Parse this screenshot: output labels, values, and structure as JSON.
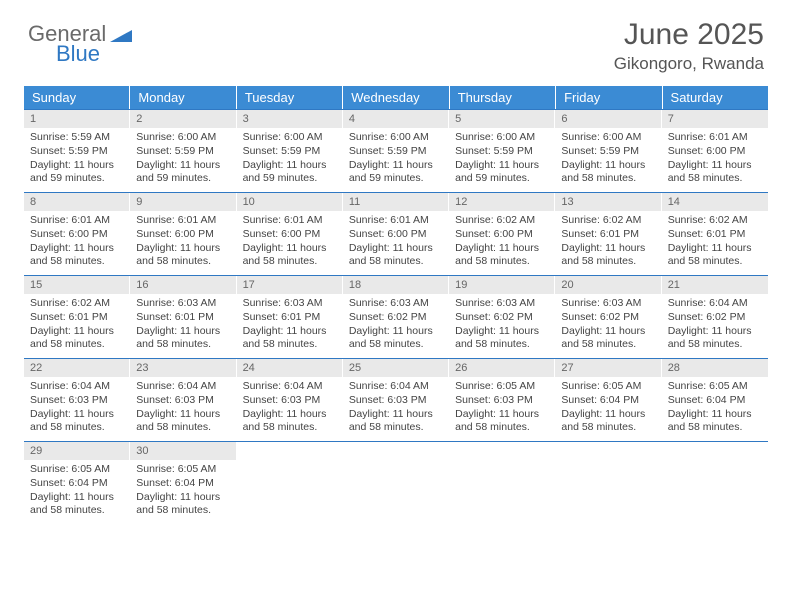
{
  "brand": {
    "part1": "General",
    "part2": "Blue"
  },
  "title": "June 2025",
  "location": "Gikongoro, Rwanda",
  "colors": {
    "header_bg": "#3b8bd4",
    "border": "#2f78c3",
    "daynum_bg": "#e9e9e9",
    "text": "#444444",
    "brand_gray": "#6a6a6a",
    "brand_blue": "#2f78c3"
  },
  "weekdays": [
    "Sunday",
    "Monday",
    "Tuesday",
    "Wednesday",
    "Thursday",
    "Friday",
    "Saturday"
  ],
  "weeks": [
    [
      {
        "n": "1",
        "sr": "Sunrise: 5:59 AM",
        "ss": "Sunset: 5:59 PM",
        "d1": "Daylight: 11 hours",
        "d2": "and 59 minutes."
      },
      {
        "n": "2",
        "sr": "Sunrise: 6:00 AM",
        "ss": "Sunset: 5:59 PM",
        "d1": "Daylight: 11 hours",
        "d2": "and 59 minutes."
      },
      {
        "n": "3",
        "sr": "Sunrise: 6:00 AM",
        "ss": "Sunset: 5:59 PM",
        "d1": "Daylight: 11 hours",
        "d2": "and 59 minutes."
      },
      {
        "n": "4",
        "sr": "Sunrise: 6:00 AM",
        "ss": "Sunset: 5:59 PM",
        "d1": "Daylight: 11 hours",
        "d2": "and 59 minutes."
      },
      {
        "n": "5",
        "sr": "Sunrise: 6:00 AM",
        "ss": "Sunset: 5:59 PM",
        "d1": "Daylight: 11 hours",
        "d2": "and 59 minutes."
      },
      {
        "n": "6",
        "sr": "Sunrise: 6:00 AM",
        "ss": "Sunset: 5:59 PM",
        "d1": "Daylight: 11 hours",
        "d2": "and 58 minutes."
      },
      {
        "n": "7",
        "sr": "Sunrise: 6:01 AM",
        "ss": "Sunset: 6:00 PM",
        "d1": "Daylight: 11 hours",
        "d2": "and 58 minutes."
      }
    ],
    [
      {
        "n": "8",
        "sr": "Sunrise: 6:01 AM",
        "ss": "Sunset: 6:00 PM",
        "d1": "Daylight: 11 hours",
        "d2": "and 58 minutes."
      },
      {
        "n": "9",
        "sr": "Sunrise: 6:01 AM",
        "ss": "Sunset: 6:00 PM",
        "d1": "Daylight: 11 hours",
        "d2": "and 58 minutes."
      },
      {
        "n": "10",
        "sr": "Sunrise: 6:01 AM",
        "ss": "Sunset: 6:00 PM",
        "d1": "Daylight: 11 hours",
        "d2": "and 58 minutes."
      },
      {
        "n": "11",
        "sr": "Sunrise: 6:01 AM",
        "ss": "Sunset: 6:00 PM",
        "d1": "Daylight: 11 hours",
        "d2": "and 58 minutes."
      },
      {
        "n": "12",
        "sr": "Sunrise: 6:02 AM",
        "ss": "Sunset: 6:00 PM",
        "d1": "Daylight: 11 hours",
        "d2": "and 58 minutes."
      },
      {
        "n": "13",
        "sr": "Sunrise: 6:02 AM",
        "ss": "Sunset: 6:01 PM",
        "d1": "Daylight: 11 hours",
        "d2": "and 58 minutes."
      },
      {
        "n": "14",
        "sr": "Sunrise: 6:02 AM",
        "ss": "Sunset: 6:01 PM",
        "d1": "Daylight: 11 hours",
        "d2": "and 58 minutes."
      }
    ],
    [
      {
        "n": "15",
        "sr": "Sunrise: 6:02 AM",
        "ss": "Sunset: 6:01 PM",
        "d1": "Daylight: 11 hours",
        "d2": "and 58 minutes."
      },
      {
        "n": "16",
        "sr": "Sunrise: 6:03 AM",
        "ss": "Sunset: 6:01 PM",
        "d1": "Daylight: 11 hours",
        "d2": "and 58 minutes."
      },
      {
        "n": "17",
        "sr": "Sunrise: 6:03 AM",
        "ss": "Sunset: 6:01 PM",
        "d1": "Daylight: 11 hours",
        "d2": "and 58 minutes."
      },
      {
        "n": "18",
        "sr": "Sunrise: 6:03 AM",
        "ss": "Sunset: 6:02 PM",
        "d1": "Daylight: 11 hours",
        "d2": "and 58 minutes."
      },
      {
        "n": "19",
        "sr": "Sunrise: 6:03 AM",
        "ss": "Sunset: 6:02 PM",
        "d1": "Daylight: 11 hours",
        "d2": "and 58 minutes."
      },
      {
        "n": "20",
        "sr": "Sunrise: 6:03 AM",
        "ss": "Sunset: 6:02 PM",
        "d1": "Daylight: 11 hours",
        "d2": "and 58 minutes."
      },
      {
        "n": "21",
        "sr": "Sunrise: 6:04 AM",
        "ss": "Sunset: 6:02 PM",
        "d1": "Daylight: 11 hours",
        "d2": "and 58 minutes."
      }
    ],
    [
      {
        "n": "22",
        "sr": "Sunrise: 6:04 AM",
        "ss": "Sunset: 6:03 PM",
        "d1": "Daylight: 11 hours",
        "d2": "and 58 minutes."
      },
      {
        "n": "23",
        "sr": "Sunrise: 6:04 AM",
        "ss": "Sunset: 6:03 PM",
        "d1": "Daylight: 11 hours",
        "d2": "and 58 minutes."
      },
      {
        "n": "24",
        "sr": "Sunrise: 6:04 AM",
        "ss": "Sunset: 6:03 PM",
        "d1": "Daylight: 11 hours",
        "d2": "and 58 minutes."
      },
      {
        "n": "25",
        "sr": "Sunrise: 6:04 AM",
        "ss": "Sunset: 6:03 PM",
        "d1": "Daylight: 11 hours",
        "d2": "and 58 minutes."
      },
      {
        "n": "26",
        "sr": "Sunrise: 6:05 AM",
        "ss": "Sunset: 6:03 PM",
        "d1": "Daylight: 11 hours",
        "d2": "and 58 minutes."
      },
      {
        "n": "27",
        "sr": "Sunrise: 6:05 AM",
        "ss": "Sunset: 6:04 PM",
        "d1": "Daylight: 11 hours",
        "d2": "and 58 minutes."
      },
      {
        "n": "28",
        "sr": "Sunrise: 6:05 AM",
        "ss": "Sunset: 6:04 PM",
        "d1": "Daylight: 11 hours",
        "d2": "and 58 minutes."
      }
    ],
    [
      {
        "n": "29",
        "sr": "Sunrise: 6:05 AM",
        "ss": "Sunset: 6:04 PM",
        "d1": "Daylight: 11 hours",
        "d2": "and 58 minutes."
      },
      {
        "n": "30",
        "sr": "Sunrise: 6:05 AM",
        "ss": "Sunset: 6:04 PM",
        "d1": "Daylight: 11 hours",
        "d2": "and 58 minutes."
      },
      {
        "n": "",
        "sr": "",
        "ss": "",
        "d1": "",
        "d2": ""
      },
      {
        "n": "",
        "sr": "",
        "ss": "",
        "d1": "",
        "d2": ""
      },
      {
        "n": "",
        "sr": "",
        "ss": "",
        "d1": "",
        "d2": ""
      },
      {
        "n": "",
        "sr": "",
        "ss": "",
        "d1": "",
        "d2": ""
      },
      {
        "n": "",
        "sr": "",
        "ss": "",
        "d1": "",
        "d2": ""
      }
    ]
  ]
}
